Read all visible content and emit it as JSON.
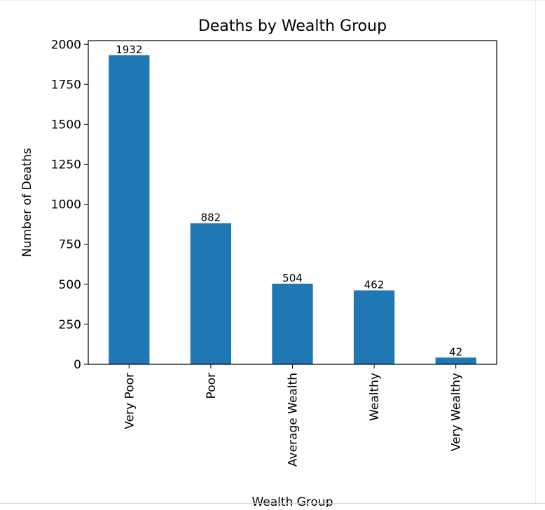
{
  "colors": {
    "bar": "#1f77b4",
    "axis": "#000000",
    "background": "#ffffff"
  },
  "chart_data": {
    "type": "bar",
    "title": "Deaths by Wealth Group",
    "xlabel": "Wealth Group",
    "ylabel": "Number of Deaths",
    "categories": [
      "Very Poor",
      "Poor",
      "Average Wealth",
      "Wealthy",
      "Very Wealthy"
    ],
    "values": [
      1932,
      882,
      504,
      462,
      42
    ],
    "data_labels": [
      "1932",
      "882",
      "504",
      "462",
      "42"
    ],
    "yticks": [
      0,
      250,
      500,
      750,
      1000,
      1250,
      1500,
      1750,
      2000
    ],
    "ylim": [
      0,
      2023
    ],
    "grid": false,
    "legend": "none"
  }
}
